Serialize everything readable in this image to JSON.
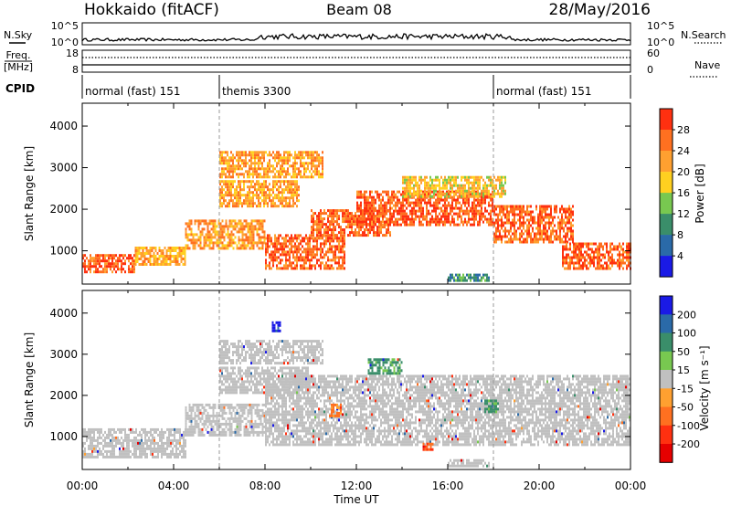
{
  "header": {
    "left_title": "Hokkaido (fitACF)",
    "center_title": "Beam 08",
    "date": "28/May/2016"
  },
  "top_panels": {
    "nsky_label": "N.Sky",
    "nsky_ticks": [
      "10^5",
      "10^0"
    ],
    "nsearch_label": "N.Search",
    "nsearch_ticks": [
      "10^5",
      "10^0"
    ],
    "freq_label_line1": "Freq.",
    "freq_label_line2": "[MHz]",
    "freq_ticks": [
      "18",
      "8"
    ],
    "nave_label": "Nave",
    "nave_ticks": [
      "60",
      "0"
    ],
    "cpid_label": "CPID",
    "cpid_segments": [
      {
        "label": "normal (fast) 151",
        "start_hour": 0,
        "end_hour": 6
      },
      {
        "label": "themis 3300",
        "start_hour": 6,
        "end_hour": 18
      },
      {
        "label": "normal (fast) 151",
        "start_hour": 18,
        "end_hour": 24
      }
    ]
  },
  "colors": {
    "scale": [
      "#1a1ae6",
      "#2a6aa8",
      "#3a8e6a",
      "#78c850",
      "#ffd020",
      "#ffa030",
      "#ff7020",
      "#ff3010",
      "#e60000",
      "#c0c0c0"
    ]
  },
  "chart_data": [
    {
      "type": "heatmap",
      "name": "power",
      "ylabel": "Slant Range [km]",
      "xlabel": "",
      "xlim": [
        0,
        24
      ],
      "ylim": [
        200,
        4550
      ],
      "yticks": [
        "1000",
        "2000",
        "3000",
        "4000"
      ],
      "colorbar": {
        "label": "Power [dB]",
        "ticks": [
          "4",
          "8",
          "12",
          "16",
          "20",
          "24",
          "28"
        ],
        "colors": [
          "#1a1ae6",
          "#2a6aa8",
          "#3a8e6a",
          "#78c850",
          "#ffd020",
          "#ffa030",
          "#ff7020",
          "#ff3010"
        ],
        "range": [
          0,
          32
        ]
      },
      "echo_regions": [
        {
          "x": [
            0.0,
            2.3
          ],
          "y": [
            520,
            920
          ],
          "value": 27
        },
        {
          "x": [
            2.3,
            4.5
          ],
          "y": [
            700,
            1100
          ],
          "value": 21
        },
        {
          "x": [
            4.5,
            8.0
          ],
          "y": [
            1050,
            1750
          ],
          "value": 23
        },
        {
          "x": [
            6.0,
            9.5
          ],
          "y": [
            2100,
            2700
          ],
          "value": 22
        },
        {
          "x": [
            6.0,
            10.5
          ],
          "y": [
            2750,
            3400
          ],
          "value": 22
        },
        {
          "x": [
            8.0,
            11.5
          ],
          "y": [
            600,
            1400
          ],
          "value": 27
        },
        {
          "x": [
            10.0,
            13.5
          ],
          "y": [
            1400,
            2000
          ],
          "value": 26
        },
        {
          "x": [
            12.0,
            18.0
          ],
          "y": [
            1600,
            2450
          ],
          "value": 28
        },
        {
          "x": [
            14.0,
            18.5
          ],
          "y": [
            2300,
            2800
          ],
          "value": 19
        },
        {
          "x": [
            18.0,
            21.5
          ],
          "y": [
            1200,
            2100
          ],
          "value": 27
        },
        {
          "x": [
            21.0,
            24.0
          ],
          "y": [
            600,
            1200
          ],
          "value": 27
        },
        {
          "x": [
            16.0,
            17.8
          ],
          "y": [
            300,
            450
          ],
          "value": 10
        }
      ]
    },
    {
      "type": "heatmap",
      "name": "velocity",
      "ylabel": "Slant Range [km]",
      "xlabel": "Time UT",
      "xlim": [
        0,
        24
      ],
      "ylim": [
        200,
        4550
      ],
      "yticks": [
        "1000",
        "2000",
        "3000",
        "4000"
      ],
      "xticks": [
        "00:00",
        "04:00",
        "08:00",
        "12:00",
        "16:00",
        "20:00",
        "00:00"
      ],
      "colorbar": {
        "label": "Velocity [m s⁻¹]",
        "ticks": [
          "200",
          "100",
          "50",
          "15",
          "-15",
          "-50",
          "-100",
          "-200"
        ],
        "colors": [
          "#1a1ae6",
          "#2a6aa8",
          "#3a8e6a",
          "#78c850",
          "#c0c0c0",
          "#ffa030",
          "#ff7020",
          "#ff3010",
          "#e60000"
        ],
        "range": [
          -250,
          250
        ]
      },
      "echo_regions": [
        {
          "x": [
            0.0,
            4.5
          ],
          "y": [
            500,
            1200
          ],
          "value": 0
        },
        {
          "x": [
            4.5,
            8.0
          ],
          "y": [
            1050,
            1800
          ],
          "value": 0
        },
        {
          "x": [
            6.0,
            10.0
          ],
          "y": [
            2100,
            2700
          ],
          "value": 0
        },
        {
          "x": [
            6.0,
            10.5
          ],
          "y": [
            2800,
            3350
          ],
          "value": 0
        },
        {
          "x": [
            8.0,
            24.0
          ],
          "y": [
            800,
            2500
          ],
          "value": 0
        },
        {
          "x": [
            12.5,
            14.0
          ],
          "y": [
            2550,
            2900
          ],
          "value": 40
        },
        {
          "x": [
            10.8,
            11.3
          ],
          "y": [
            1500,
            1800
          ],
          "value": -40
        },
        {
          "x": [
            17.6,
            18.2
          ],
          "y": [
            1600,
            1900
          ],
          "value": 40
        },
        {
          "x": [
            16.0,
            17.8
          ],
          "y": [
            300,
            450
          ],
          "value": 0
        },
        {
          "x": [
            8.3,
            8.7
          ],
          "y": [
            3600,
            3800
          ],
          "value": 160
        },
        {
          "x": [
            14.9,
            15.3
          ],
          "y": [
            700,
            850
          ],
          "value": -70
        }
      ]
    }
  ]
}
